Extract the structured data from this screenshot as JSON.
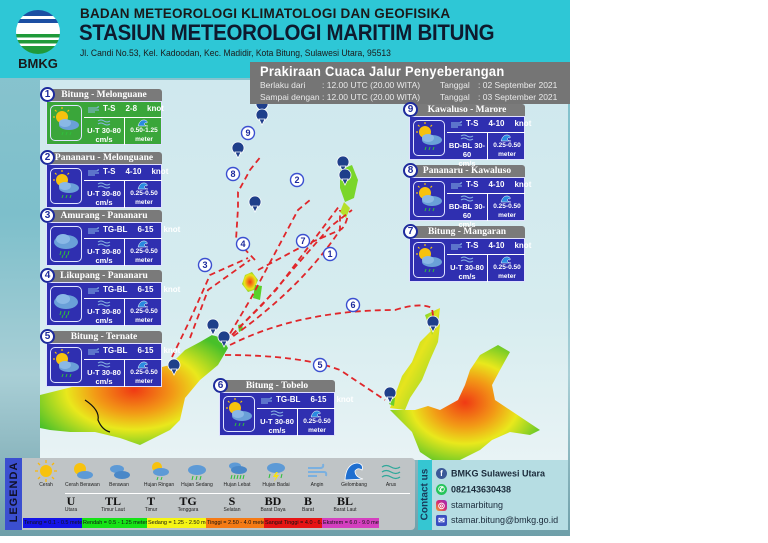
{
  "header": {
    "logo_text": "BMKG",
    "org_name": "BADAN METEOROLOGI KLIMATOLOGI DAN GEOFISIKA",
    "station_name": "STASIUN METEOROLOGI MARITIM BITUNG",
    "address": "Jl. Candi No.53, Kel. Kadoodan, Kec. Madidir, Kota Bitung, Sulawesi Utara, 95513"
  },
  "forecast_info": {
    "title": "Prakiraan Cuaca Jalur Penyeberangan",
    "valid_from_label": "Berlaku dari",
    "valid_from_time": ": 12.00 UTC (20.00 WITA)",
    "valid_from_date_label": "Tanggal",
    "valid_from_date": ":   02 September 2021",
    "valid_until_label": "Sampai dengan",
    "valid_until_time": ": 12.00 UTC (20.00 WITA)",
    "valid_until_date_label": "Tanggal",
    "valid_until_date": ":   03 September 2021"
  },
  "routes": [
    {
      "num": "1",
      "name": "Bitung - Melonguane",
      "weather": "cerah-berawan-hujan-ringan",
      "wind_dir": "T-S",
      "wind_speed": "2-8",
      "wind_unit": "knot",
      "current_dir": "U-T",
      "current_speed": "30-80",
      "current_unit": "cm/s",
      "wave": "0.50-1.25",
      "wave_unit": "meter",
      "color": "#3aa63a"
    },
    {
      "num": "2",
      "name": "Pananaru - Melonguane",
      "weather": "cerah-berawan-hujan-ringan",
      "wind_dir": "T-S",
      "wind_speed": "4-10",
      "wind_unit": "knot",
      "current_dir": "U-T",
      "current_speed": "30-80",
      "current_unit": "cm/s",
      "wave": "0.25-0.50",
      "wave_unit": "meter",
      "color": "#2f2fb0"
    },
    {
      "num": "3",
      "name": "Amurang - Pananaru",
      "weather": "hujan-sedang",
      "wind_dir": "TG-BL",
      "wind_speed": "6-15",
      "wind_unit": "knot",
      "current_dir": "U-T",
      "current_speed": "30-80",
      "current_unit": "cm/s",
      "wave": "0.25-0.50",
      "wave_unit": "meter",
      "color": "#2f2fb0"
    },
    {
      "num": "4",
      "name": "Likupang - Pananaru",
      "weather": "hujan-sedang",
      "wind_dir": "TG-BL",
      "wind_speed": "6-15",
      "wind_unit": "knot",
      "current_dir": "U-T",
      "current_speed": "30-80",
      "current_unit": "cm/s",
      "wave": "0.25-0.50",
      "wave_unit": "meter",
      "color": "#2f2fb0"
    },
    {
      "num": "5",
      "name": "Bitung - Ternate",
      "weather": "cerah-berawan-hujan-ringan",
      "wind_dir": "TG-BL",
      "wind_speed": "6-15",
      "wind_unit": "knot",
      "current_dir": "U-T",
      "current_speed": "30-80",
      "current_unit": "cm/s",
      "wave": "0.25-0.50",
      "wave_unit": "meter",
      "color": "#2f2fb0"
    },
    {
      "num": "6",
      "name": "Bitung - Tobelo",
      "weather": "cerah-berawan-hujan-ringan",
      "wind_dir": "TG-BL",
      "wind_speed": "6-15",
      "wind_unit": "knot",
      "current_dir": "U-T",
      "current_speed": "30-80",
      "current_unit": "cm/s",
      "wave": "0.25-0.50",
      "wave_unit": "meter",
      "color": "#2f2fb0"
    },
    {
      "num": "7",
      "name": "Bitung - Mangaran",
      "weather": "cerah-berawan-hujan-ringan",
      "wind_dir": "T-S",
      "wind_speed": "4-10",
      "wind_unit": "knot",
      "current_dir": "U-T",
      "current_speed": "30-80",
      "current_unit": "cm/s",
      "wave": "0.25-0.50",
      "wave_unit": "meter",
      "color": "#2f2fb0"
    },
    {
      "num": "8",
      "name": "Pananaru - Kawaluso",
      "weather": "cerah-berawan-hujan-ringan",
      "wind_dir": "T-S",
      "wind_speed": "4-10",
      "wind_unit": "knot",
      "current_dir": "BD-BL",
      "current_speed": "30-60",
      "current_unit": "cm/s",
      "wave": "0.25-0.50",
      "wave_unit": "meter",
      "color": "#2f2fb0"
    },
    {
      "num": "9",
      "name": "Kawaluso - Marore",
      "weather": "cerah-berawan-hujan-ringan",
      "wind_dir": "T-S",
      "wind_speed": "4-10",
      "wind_unit": "knot",
      "current_dir": "BD-BL",
      "current_speed": "30-60",
      "current_unit": "cm/s",
      "wave": "0.25-0.50",
      "wave_unit": "meter",
      "color": "#2f2fb0"
    }
  ],
  "map_labels": [
    "1",
    "2",
    "3",
    "4",
    "5",
    "6",
    "7",
    "8",
    "9"
  ],
  "legend": {
    "title": "LEGENDA",
    "weather": [
      {
        "label": "Cerah",
        "icon": "sun-icon"
      },
      {
        "label": "Cerah Berawan",
        "icon": "sun-cloud-icon"
      },
      {
        "label": "Berawan",
        "icon": "cloud-icon"
      },
      {
        "label": "Hujan Ringan",
        "icon": "light-rain-icon"
      },
      {
        "label": "Hujan Sedang",
        "icon": "moderate-rain-icon"
      },
      {
        "label": "Hujan Lebat",
        "icon": "heavy-rain-icon"
      },
      {
        "label": "Hujan Badai",
        "icon": "thunderstorm-icon"
      },
      {
        "label": "Angin",
        "icon": "wind-icon"
      },
      {
        "label": "Gelombang",
        "icon": "wave-icon"
      },
      {
        "label": "Arus",
        "icon": "current-icon"
      }
    ],
    "directions": [
      {
        "code": "U",
        "label": "Utara"
      },
      {
        "code": "TL",
        "label": "Timur Laut"
      },
      {
        "code": "T",
        "label": "Timur"
      },
      {
        "code": "TG",
        "label": "Tenggara"
      },
      {
        "code": "S",
        "label": "Selatan"
      },
      {
        "code": "BD",
        "label": "Barat Daya"
      },
      {
        "code": "B",
        "label": "Barat"
      },
      {
        "code": "BL",
        "label": "Barat Laut"
      }
    ],
    "wave_categories": [
      {
        "label": "Tenang = 0.1 - 0.5 meter",
        "color": "#1414e6"
      },
      {
        "label": "Rendah = 0.5 - 1.25 meter",
        "color": "#16e316"
      },
      {
        "label": "Sedang = 1.25 - 2.50 meter",
        "color": "#f5f514"
      },
      {
        "label": "Tinggi = 2.50 - 4.0 meter",
        "color": "#f57a14"
      },
      {
        "label": "Sangat Tinggi = 4.0 - 6.0 meter",
        "color": "#e61414"
      },
      {
        "label": "Ekstrem = 6.0 - 9.0 meter",
        "color": "#d43fbf"
      }
    ]
  },
  "contact": {
    "title": "Contact us",
    "facebook": "BMKG Sulawesi Utara",
    "whatsapp": "082143630438",
    "instagram": "stamarbitung",
    "email": "stamar.bitung@bmkg.go.id"
  }
}
